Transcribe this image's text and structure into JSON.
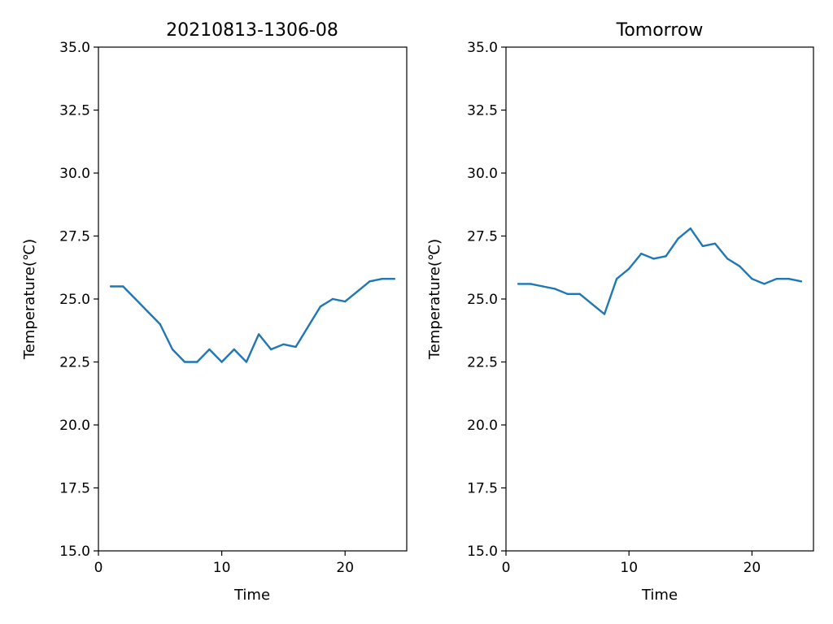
{
  "chart_data": [
    {
      "type": "line",
      "title": "20210813-1306-08",
      "xlabel": "Time",
      "ylabel": "Temperature(℃)",
      "xlim": [
        0,
        25
      ],
      "ylim": [
        15.0,
        35.0
      ],
      "xticks": [
        0,
        10,
        20
      ],
      "xtick_labels": [
        "0",
        "10",
        "20"
      ],
      "yticks": [
        15.0,
        17.5,
        20.0,
        22.5,
        25.0,
        27.5,
        30.0,
        32.5,
        35.0
      ],
      "ytick_labels": [
        "15.0",
        "17.5",
        "20.0",
        "22.5",
        "25.0",
        "27.5",
        "30.0",
        "32.5",
        "35.0"
      ],
      "grid": false,
      "color": "#1f77b4",
      "series": [
        {
          "x": [
            1,
            2,
            3,
            4,
            5,
            6,
            7,
            8,
            9,
            10,
            11,
            12,
            13,
            14,
            15,
            16,
            17,
            18,
            19,
            20,
            21,
            22,
            23,
            24
          ],
          "values": [
            25.5,
            25.5,
            25.0,
            24.5,
            24.0,
            23.0,
            22.5,
            22.5,
            23.0,
            22.5,
            23.0,
            22.5,
            23.6,
            23.0,
            23.2,
            23.1,
            23.9,
            24.7,
            25.0,
            24.9,
            25.3,
            25.7,
            25.8,
            25.8
          ]
        }
      ]
    },
    {
      "type": "line",
      "title": "Tomorrow",
      "xlabel": "Time",
      "ylabel": "Temperature(℃)",
      "xlim": [
        0,
        25
      ],
      "ylim": [
        15.0,
        35.0
      ],
      "xticks": [
        0,
        10,
        20
      ],
      "xtick_labels": [
        "0",
        "10",
        "20"
      ],
      "yticks": [
        15.0,
        17.5,
        20.0,
        22.5,
        25.0,
        27.5,
        30.0,
        32.5,
        35.0
      ],
      "ytick_labels": [
        "15.0",
        "17.5",
        "20.0",
        "22.5",
        "25.0",
        "27.5",
        "30.0",
        "32.5",
        "35.0"
      ],
      "grid": false,
      "color": "#1f77b4",
      "series": [
        {
          "x": [
            1,
            2,
            3,
            4,
            5,
            6,
            7,
            8,
            9,
            10,
            11,
            12,
            13,
            14,
            15,
            16,
            17,
            18,
            19,
            20,
            21,
            22,
            23,
            24
          ],
          "values": [
            25.6,
            25.6,
            25.5,
            25.4,
            25.2,
            25.2,
            24.8,
            24.4,
            25.8,
            26.2,
            26.8,
            26.6,
            26.7,
            27.4,
            27.8,
            27.1,
            27.2,
            26.6,
            26.3,
            25.8,
            25.6,
            25.8,
            25.8,
            25.7
          ]
        }
      ]
    }
  ]
}
